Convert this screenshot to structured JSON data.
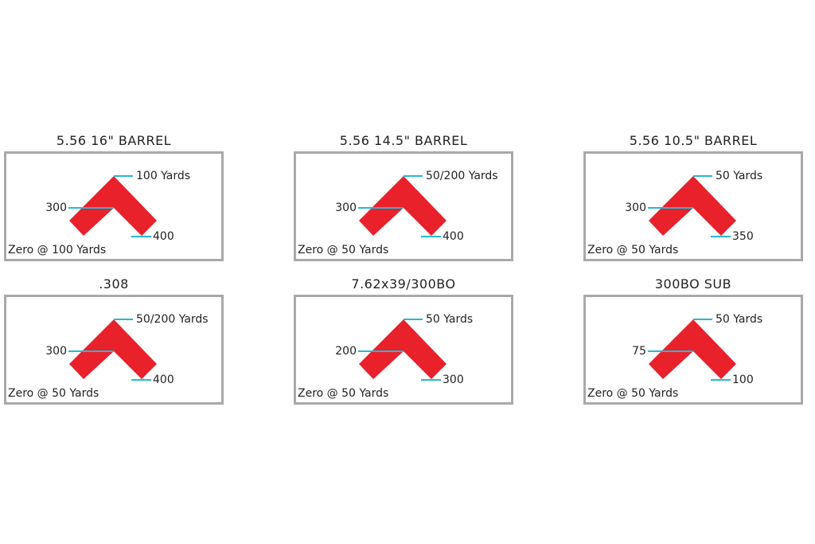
{
  "colors": {
    "chevron": "#e8212b",
    "leader": "#29b6d6",
    "border": "#a9a9a9"
  },
  "panels": [
    {
      "title": "5.56 16\" BARREL",
      "top_label": "100 Yards",
      "mid_label": "300",
      "bottom_label": "400",
      "zero": "Zero @ 100 Yards"
    },
    {
      "title": "5.56 14.5\" BARREL",
      "top_label": "50/200 Yards",
      "mid_label": "300",
      "bottom_label": "400",
      "zero": "Zero @ 50 Yards"
    },
    {
      "title": "5.56 10.5\" BARREL",
      "top_label": "50 Yards",
      "mid_label": "300",
      "bottom_label": "350",
      "zero": "Zero @ 50 Yards"
    },
    {
      "title": ".308",
      "top_label": "50/200 Yards",
      "mid_label": "300",
      "bottom_label": "400",
      "zero": "Zero @ 50 Yards"
    },
    {
      "title": "7.62x39/300BO",
      "top_label": "50 Yards",
      "mid_label": "200",
      "bottom_label": "300",
      "zero": "Zero @ 50 Yards"
    },
    {
      "title": "300BO SUB",
      "top_label": "50 Yards",
      "mid_label": "75",
      "bottom_label": "100",
      "zero": "Zero @ 50 Yards"
    }
  ]
}
